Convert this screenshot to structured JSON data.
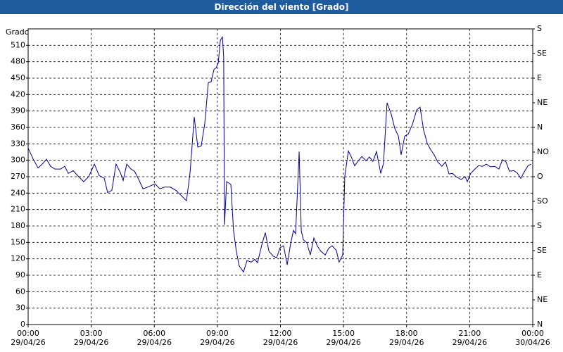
{
  "chart_data": {
    "type": "line",
    "title": "Dirección del viento [Grado]",
    "ylabel": "Grado",
    "xlim": [
      0,
      24
    ],
    "xticks": [
      {
        "value": 0,
        "label": "00:00\n29/04/26"
      },
      {
        "value": 3,
        "label": "03:00\n29/04/26"
      },
      {
        "value": 6,
        "label": "06:00\n29/04/26"
      },
      {
        "value": 9,
        "label": "09:00\n29/04/26"
      },
      {
        "value": 12,
        "label": "12:00\n29/04/26"
      },
      {
        "value": 15,
        "label": "15:00\n29/04/26"
      },
      {
        "value": 18,
        "label": "18:00\n29/04/26"
      },
      {
        "value": 21,
        "label": "21:00\n29/04/26"
      },
      {
        "value": 24,
        "label": "00:00\n30/04/26"
      }
    ],
    "ylim": [
      0,
      540
    ],
    "yticks": [
      0,
      30,
      60,
      90,
      120,
      150,
      180,
      210,
      240,
      270,
      300,
      330,
      360,
      390,
      420,
      450,
      480,
      510
    ],
    "y2lim": [
      0,
      540
    ],
    "y2ticks": [
      {
        "value": 0,
        "label": "N"
      },
      {
        "value": 45,
        "label": "NE"
      },
      {
        "value": 90,
        "label": "E"
      },
      {
        "value": 135,
        "label": "SE"
      },
      {
        "value": 180,
        "label": "S"
      },
      {
        "value": 225,
        "label": "SO"
      },
      {
        "value": 270,
        "label": "O"
      },
      {
        "value": 315,
        "label": "NO"
      },
      {
        "value": 360,
        "label": "N"
      },
      {
        "value": 405,
        "label": "NE"
      },
      {
        "value": 450,
        "label": "E"
      },
      {
        "value": 495,
        "label": "SE"
      },
      {
        "value": 540,
        "label": "S"
      }
    ],
    "grid": true,
    "series": [
      {
        "color": "#00008b",
        "x": [
          0,
          0.23,
          0.47,
          0.67,
          0.87,
          1.07,
          1.27,
          1.54,
          1.74,
          1.91,
          2.14,
          2.38,
          2.64,
          2.88,
          3.15,
          3.38,
          3.62,
          3.78,
          3.98,
          4.18,
          4.39,
          4.52,
          4.69,
          4.89,
          5.06,
          5.26,
          5.46,
          5.62,
          5.86,
          6.03,
          6.26,
          6.49,
          6.76,
          7.03,
          7.3,
          7.53,
          7.7,
          7.9,
          8.07,
          8.23,
          8.4,
          8.57,
          8.7,
          8.84,
          8.94,
          9.04,
          9.14,
          9.24,
          9.3,
          9.34,
          9.44,
          9.64,
          9.77,
          9.91,
          10.04,
          10.24,
          10.41,
          10.61,
          10.78,
          10.91,
          11.11,
          11.28,
          11.45,
          11.65,
          11.82,
          11.98,
          12.15,
          12.32,
          12.49,
          12.62,
          12.72,
          12.89,
          12.99,
          13.09,
          13.26,
          13.42,
          13.59,
          13.76,
          13.92,
          14.13,
          14.29,
          14.46,
          14.66,
          14.79,
          14.96,
          15.06,
          15.23,
          15.36,
          15.53,
          15.7,
          15.87,
          16.07,
          16.23,
          16.4,
          16.57,
          16.77,
          16.9,
          17.07,
          17.27,
          17.44,
          17.61,
          17.74,
          17.91,
          18.08,
          18.28,
          18.48,
          18.64,
          18.81,
          18.98,
          19.15,
          19.31,
          19.48,
          19.68,
          19.85,
          20.02,
          20.18,
          20.35,
          20.59,
          20.79,
          20.89,
          21.05,
          21.25,
          21.42,
          21.62,
          21.79,
          21.99,
          22.19,
          22.39,
          22.56,
          22.73,
          22.89,
          23.1,
          23.26,
          23.43,
          23.6,
          23.77,
          23.93
        ],
        "values": [
          322,
          303,
          286,
          293,
          302,
          289,
          284,
          284,
          289,
          276,
          281,
          271,
          261,
          270,
          293,
          272,
          267,
          241,
          245,
          293,
          277,
          263,
          293,
          284,
          280,
          265,
          248,
          250,
          254,
          257,
          248,
          251,
          251,
          245,
          235,
          226,
          277,
          379,
          324,
          326,
          367,
          442,
          443,
          466,
          469,
          477,
          519,
          525,
          489,
          182,
          261,
          256,
          171,
          132,
          107,
          96,
          117,
          114,
          119,
          113,
          145,
          168,
          134,
          125,
          122,
          140,
          144,
          109,
          149,
          172,
          166,
          316,
          171,
          155,
          149,
          127,
          158,
          143,
          134,
          127,
          139,
          144,
          135,
          114,
          127,
          271,
          317,
          307,
          290,
          299,
          307,
          299,
          306,
          298,
          316,
          276,
          294,
          405,
          384,
          358,
          344,
          310,
          344,
          348,
          366,
          392,
          397,
          355,
          331,
          319,
          310,
          297,
          289,
          297,
          275,
          276,
          270,
          265,
          270,
          261,
          276,
          284,
          290,
          289,
          293,
          288,
          289,
          284,
          301,
          297,
          280,
          281,
          277,
          267,
          279,
          290,
          293
        ]
      }
    ]
  }
}
